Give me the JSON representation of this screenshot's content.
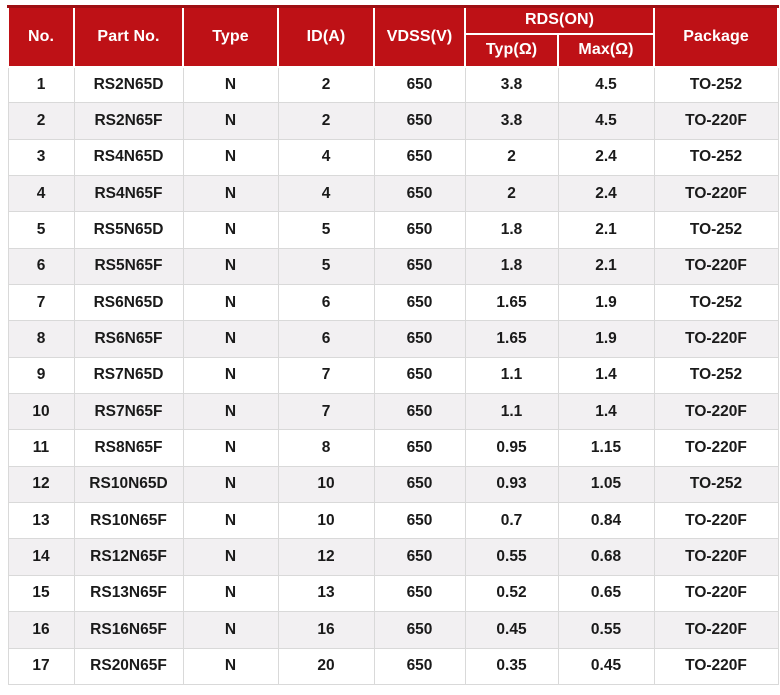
{
  "colors": {
    "header_bg": "#BE1116",
    "header_top": "#9E0F13",
    "header_text": "#FFFFFF",
    "row_alt": "#F2F0F2",
    "border": "#D9D9D9",
    "text": "#1A1A1A"
  },
  "table": {
    "header": {
      "no": "No.",
      "part_no": "Part No.",
      "type": "Type",
      "id_a": "ID(A)",
      "vdss": "VDSS(V)",
      "rds_on": "RDS(ON)",
      "typ": "Typ(Ω)",
      "max": "Max(Ω)",
      "package": "Package"
    },
    "rows": [
      [
        "1",
        "RS2N65D",
        "N",
        "2",
        "650",
        "3.8",
        "4.5",
        "TO-252"
      ],
      [
        "2",
        "RS2N65F",
        "N",
        "2",
        "650",
        "3.8",
        "4.5",
        "TO-220F"
      ],
      [
        "3",
        "RS4N65D",
        "N",
        "4",
        "650",
        "2",
        "2.4",
        "TO-252"
      ],
      [
        "4",
        "RS4N65F",
        "N",
        "4",
        "650",
        "2",
        "2.4",
        "TO-220F"
      ],
      [
        "5",
        "RS5N65D",
        "N",
        "5",
        "650",
        "1.8",
        "2.1",
        "TO-252"
      ],
      [
        "6",
        "RS5N65F",
        "N",
        "5",
        "650",
        "1.8",
        "2.1",
        "TO-220F"
      ],
      [
        "7",
        "RS6N65D",
        "N",
        "6",
        "650",
        "1.65",
        "1.9",
        "TO-252"
      ],
      [
        "8",
        "RS6N65F",
        "N",
        "6",
        "650",
        "1.65",
        "1.9",
        "TO-220F"
      ],
      [
        "9",
        "RS7N65D",
        "N",
        "7",
        "650",
        "1.1",
        "1.4",
        "TO-252"
      ],
      [
        "10",
        "RS7N65F",
        "N",
        "7",
        "650",
        "1.1",
        "1.4",
        "TO-220F"
      ],
      [
        "11",
        "RS8N65F",
        "N",
        "8",
        "650",
        "0.95",
        "1.15",
        "TO-220F"
      ],
      [
        "12",
        "RS10N65D",
        "N",
        "10",
        "650",
        "0.93",
        "1.05",
        "TO-252"
      ],
      [
        "13",
        "RS10N65F",
        "N",
        "10",
        "650",
        "0.7",
        "0.84",
        "TO-220F"
      ],
      [
        "14",
        "RS12N65F",
        "N",
        "12",
        "650",
        "0.55",
        "0.68",
        "TO-220F"
      ],
      [
        "15",
        "RS13N65F",
        "N",
        "13",
        "650",
        "0.52",
        "0.65",
        "TO-220F"
      ],
      [
        "16",
        "RS16N65F",
        "N",
        "16",
        "650",
        "0.45",
        "0.55",
        "TO-220F"
      ],
      [
        "17",
        "RS20N65F",
        "N",
        "20",
        "650",
        "0.35",
        "0.45",
        "TO-220F"
      ]
    ]
  }
}
